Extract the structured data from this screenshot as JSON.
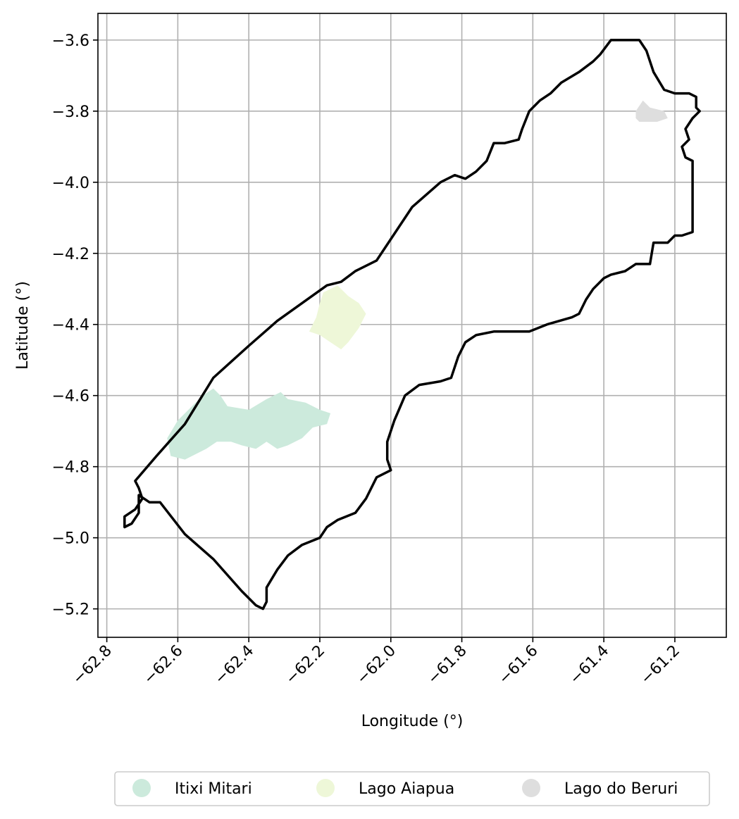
{
  "chart_data": {
    "type": "map",
    "xlabel": "Longitude (°)",
    "ylabel": "Latitude (°)",
    "xlim": [
      -62.825,
      -61.055
    ],
    "ylim": [
      -5.28,
      -3.525
    ],
    "grid": true,
    "x_ticks": [
      -62.8,
      -62.6,
      -62.4,
      -62.2,
      -62.0,
      -61.8,
      -61.6,
      -61.4,
      -61.2
    ],
    "x_tick_labels": [
      "−62.8",
      "−62.6",
      "−62.4",
      "−62.2",
      "−62.0",
      "−61.8",
      "−61.6",
      "−61.4",
      "−61.2"
    ],
    "y_ticks": [
      -3.6,
      -3.8,
      -4.0,
      -4.2,
      -4.4,
      -4.6,
      -4.8,
      -5.0,
      -5.2
    ],
    "y_tick_labels": [
      "−3.6",
      "−3.8",
      "−4.0",
      "−4.2",
      "−4.4",
      "−4.6",
      "−4.8",
      "−5.0",
      "−5.2"
    ],
    "legend_position": "bottom-center",
    "boundary": {
      "color": "#000000",
      "coords": [
        [
          -62.72,
          -4.84
        ],
        [
          -62.66,
          -4.77
        ],
        [
          -62.58,
          -4.68
        ],
        [
          -62.5,
          -4.55
        ],
        [
          -62.4,
          -4.46
        ],
        [
          -62.32,
          -4.39
        ],
        [
          -62.18,
          -4.29
        ],
        [
          -62.14,
          -4.28
        ],
        [
          -62.1,
          -4.25
        ],
        [
          -62.04,
          -4.22
        ],
        [
          -61.94,
          -4.07
        ],
        [
          -61.86,
          -4.0
        ],
        [
          -61.82,
          -3.98
        ],
        [
          -61.79,
          -3.99
        ],
        [
          -61.76,
          -3.97
        ],
        [
          -61.73,
          -3.94
        ],
        [
          -61.71,
          -3.89
        ],
        [
          -61.68,
          -3.89
        ],
        [
          -61.64,
          -3.88
        ],
        [
          -61.63,
          -3.85
        ],
        [
          -61.61,
          -3.8
        ],
        [
          -61.58,
          -3.77
        ],
        [
          -61.55,
          -3.75
        ],
        [
          -61.52,
          -3.72
        ],
        [
          -61.47,
          -3.69
        ],
        [
          -61.43,
          -3.66
        ],
        [
          -61.41,
          -3.64
        ],
        [
          -61.38,
          -3.6
        ],
        [
          -61.35,
          -3.6
        ],
        [
          -61.3,
          -3.6
        ],
        [
          -61.28,
          -3.63
        ],
        [
          -61.26,
          -3.69
        ],
        [
          -61.23,
          -3.74
        ],
        [
          -61.2,
          -3.75
        ],
        [
          -61.16,
          -3.75
        ],
        [
          -61.14,
          -3.76
        ],
        [
          -61.14,
          -3.79
        ],
        [
          -61.13,
          -3.8
        ],
        [
          -61.15,
          -3.82
        ],
        [
          -61.17,
          -3.85
        ],
        [
          -61.16,
          -3.88
        ],
        [
          -61.18,
          -3.9
        ],
        [
          -61.17,
          -3.93
        ],
        [
          -61.15,
          -3.94
        ],
        [
          -61.15,
          -4.14
        ],
        [
          -61.18,
          -4.15
        ],
        [
          -61.2,
          -4.15
        ],
        [
          -61.22,
          -4.17
        ],
        [
          -61.24,
          -4.17
        ],
        [
          -61.26,
          -4.17
        ],
        [
          -61.27,
          -4.23
        ],
        [
          -61.31,
          -4.23
        ],
        [
          -61.34,
          -4.25
        ],
        [
          -61.38,
          -4.26
        ],
        [
          -61.4,
          -4.27
        ],
        [
          -61.43,
          -4.3
        ],
        [
          -61.45,
          -4.33
        ],
        [
          -61.47,
          -4.37
        ],
        [
          -61.49,
          -4.38
        ],
        [
          -61.56,
          -4.4
        ],
        [
          -61.61,
          -4.42
        ],
        [
          -61.71,
          -4.42
        ],
        [
          -61.76,
          -4.43
        ],
        [
          -61.79,
          -4.45
        ],
        [
          -61.81,
          -4.49
        ],
        [
          -61.83,
          -4.55
        ],
        [
          -61.86,
          -4.56
        ],
        [
          -61.92,
          -4.57
        ],
        [
          -61.96,
          -4.6
        ],
        [
          -61.99,
          -4.67
        ],
        [
          -62.01,
          -4.73
        ],
        [
          -62.01,
          -4.78
        ],
        [
          -62.0,
          -4.81
        ],
        [
          -62.04,
          -4.83
        ],
        [
          -62.07,
          -4.89
        ],
        [
          -62.1,
          -4.93
        ],
        [
          -62.15,
          -4.95
        ],
        [
          -62.18,
          -4.97
        ],
        [
          -62.2,
          -5.0
        ],
        [
          -62.25,
          -5.02
        ],
        [
          -62.29,
          -5.05
        ],
        [
          -62.32,
          -5.09
        ],
        [
          -62.35,
          -5.14
        ],
        [
          -62.35,
          -5.18
        ],
        [
          -62.36,
          -5.2
        ],
        [
          -62.38,
          -5.19
        ],
        [
          -62.42,
          -5.15
        ],
        [
          -62.5,
          -5.06
        ],
        [
          -62.58,
          -4.99
        ],
        [
          -62.65,
          -4.9
        ],
        [
          -62.68,
          -4.9
        ],
        [
          -62.71,
          -4.88
        ],
        [
          -62.71,
          -4.93
        ],
        [
          -62.73,
          -4.96
        ],
        [
          -62.75,
          -4.97
        ],
        [
          -62.75,
          -4.94
        ],
        [
          -62.72,
          -4.92
        ],
        [
          -62.7,
          -4.89
        ],
        [
          -62.71,
          -4.86
        ],
        [
          -62.72,
          -4.84
        ]
      ]
    },
    "areas": [
      {
        "name": "Itixi Mitari",
        "color": "#cceadc",
        "coords": [
          [
            -62.6,
            -4.67
          ],
          [
            -62.53,
            -4.6
          ],
          [
            -62.5,
            -4.58
          ],
          [
            -62.48,
            -4.6
          ],
          [
            -62.46,
            -4.63
          ],
          [
            -62.4,
            -4.64
          ],
          [
            -62.35,
            -4.61
          ],
          [
            -62.31,
            -4.59
          ],
          [
            -62.29,
            -4.61
          ],
          [
            -62.24,
            -4.62
          ],
          [
            -62.2,
            -4.64
          ],
          [
            -62.17,
            -4.65
          ],
          [
            -62.18,
            -4.68
          ],
          [
            -62.22,
            -4.69
          ],
          [
            -62.25,
            -4.72
          ],
          [
            -62.29,
            -4.74
          ],
          [
            -62.32,
            -4.75
          ],
          [
            -62.35,
            -4.73
          ],
          [
            -62.38,
            -4.75
          ],
          [
            -62.42,
            -4.74
          ],
          [
            -62.45,
            -4.73
          ],
          [
            -62.49,
            -4.73
          ],
          [
            -62.52,
            -4.75
          ],
          [
            -62.58,
            -4.78
          ],
          [
            -62.62,
            -4.77
          ],
          [
            -62.63,
            -4.72
          ]
        ]
      },
      {
        "name": "Lago Aiapua",
        "color": "#eef7d8",
        "coords": [
          [
            -62.19,
            -4.31
          ],
          [
            -62.15,
            -4.29
          ],
          [
            -62.12,
            -4.32
          ],
          [
            -62.09,
            -4.34
          ],
          [
            -62.07,
            -4.37
          ],
          [
            -62.09,
            -4.41
          ],
          [
            -62.12,
            -4.45
          ],
          [
            -62.14,
            -4.47
          ],
          [
            -62.17,
            -4.45
          ],
          [
            -62.2,
            -4.43
          ],
          [
            -62.23,
            -4.42
          ],
          [
            -62.21,
            -4.38
          ],
          [
            -62.2,
            -4.34
          ]
        ]
      },
      {
        "name": "Lago do Beruri",
        "color": "#dedede",
        "coords": [
          [
            -61.31,
            -3.8
          ],
          [
            -61.29,
            -3.77
          ],
          [
            -61.27,
            -3.79
          ],
          [
            -61.23,
            -3.8
          ],
          [
            -61.22,
            -3.82
          ],
          [
            -61.25,
            -3.83
          ],
          [
            -61.28,
            -3.83
          ],
          [
            -61.3,
            -3.83
          ],
          [
            -61.31,
            -3.82
          ]
        ]
      }
    ]
  },
  "legend": {
    "items": [
      {
        "label": "Itixi Mitari",
        "color": "#cceadc"
      },
      {
        "label": "Lago Aiapua",
        "color": "#eef7d8"
      },
      {
        "label": "Lago do Beruri",
        "color": "#dedede"
      }
    ]
  }
}
